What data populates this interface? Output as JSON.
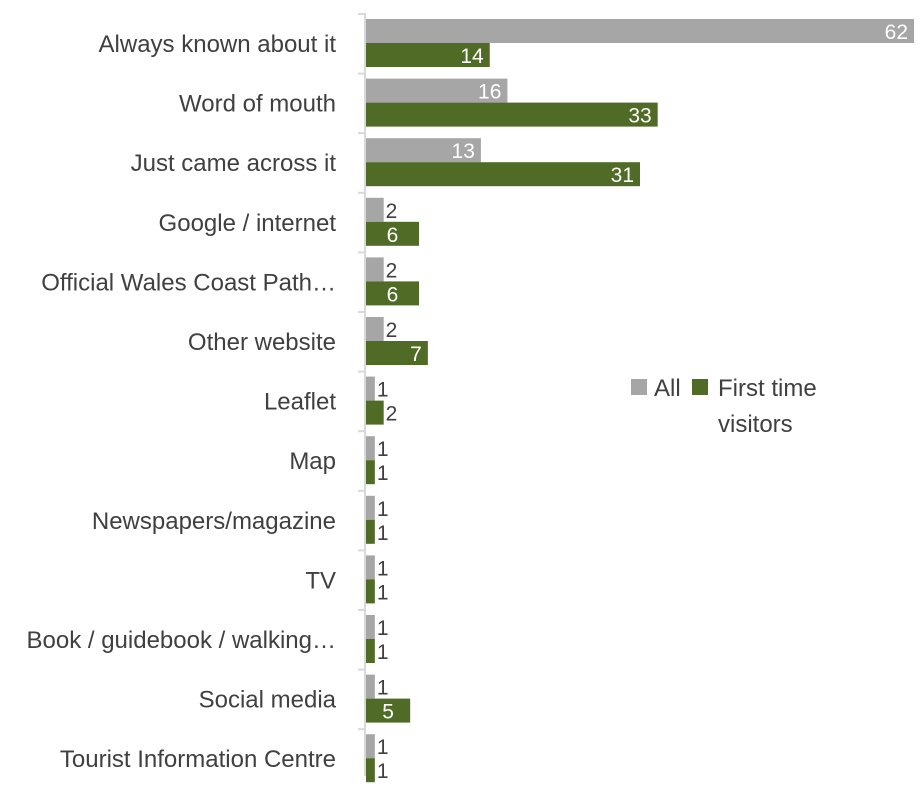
{
  "chart_data": {
    "type": "bar",
    "orientation": "horizontal",
    "title": "",
    "xlabel": "",
    "ylabel": "",
    "categories": [
      "Always known about it",
      "Word of mouth",
      "Just came across it",
      "Google / internet",
      "Official Wales Coast Path…",
      "Other website",
      "Leaflet",
      "Map",
      "Newspapers/magazine",
      "TV",
      "Book / guidebook / walking…",
      "Social media",
      "Tourist Information Centre"
    ],
    "series": [
      {
        "name": "All",
        "color": "#a6a6a6",
        "values": [
          62,
          16,
          13,
          2,
          2,
          2,
          1,
          1,
          1,
          1,
          1,
          1,
          1
        ]
      },
      {
        "name": "First time visitors",
        "color": "#4f6b26",
        "values": [
          14,
          33,
          31,
          6,
          6,
          7,
          2,
          1,
          1,
          1,
          1,
          5,
          1
        ]
      }
    ],
    "xlim": [
      0,
      62
    ],
    "grid": false,
    "legend": {
      "position": "right",
      "line1": "All",
      "line2a": "First time",
      "line2b": "visitors"
    },
    "data_labels": true
  }
}
